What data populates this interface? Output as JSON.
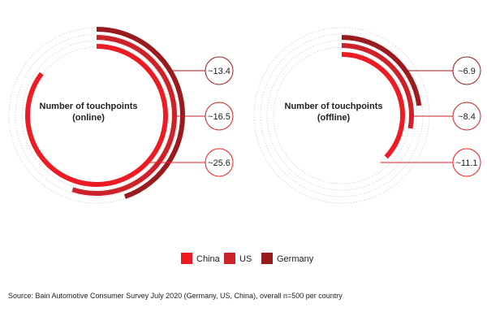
{
  "chart_data": [
    {
      "type": "radial-bar",
      "center_label": [
        "Number of touchpoints",
        "(online)"
      ],
      "scale_max": 30,
      "series": [
        {
          "name": "China",
          "value": 25.6,
          "label": "~25.6",
          "color": "#ed1c24"
        },
        {
          "name": "US",
          "value": 16.5,
          "label": "~16.5",
          "color": "#cc2229"
        },
        {
          "name": "Germany",
          "value": 13.4,
          "label": "~13.4",
          "color": "#991b1e"
        }
      ]
    },
    {
      "type": "radial-bar",
      "center_label": [
        "Number of touchpoints",
        "(offline)"
      ],
      "scale_max": 30,
      "series": [
        {
          "name": "China",
          "value": 11.1,
          "label": "~11.1",
          "color": "#ed1c24"
        },
        {
          "name": "US",
          "value": 8.4,
          "label": "~8.4",
          "color": "#cc2229"
        },
        {
          "name": "Germany",
          "value": 6.9,
          "label": "~6.9",
          "color": "#991b1e"
        }
      ]
    }
  ],
  "legend": [
    {
      "name": "China",
      "color": "#ed1c24"
    },
    {
      "name": "US",
      "color": "#cc2229"
    },
    {
      "name": "Germany",
      "color": "#991b1e"
    }
  ],
  "source": "Source: Bain Automotive Consumer Survey July 2020 (Germany, US, China), overall n=500 per country"
}
